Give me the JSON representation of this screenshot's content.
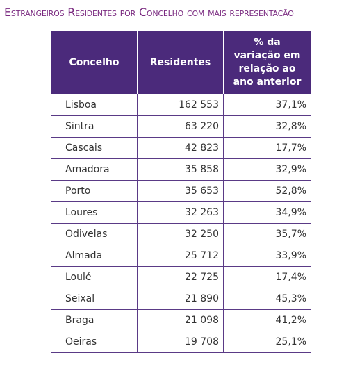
{
  "title": "Estrangeiros Residentes por Concelho com mais representação",
  "table": {
    "header": [
      "Concelho",
      "Residentes",
      "% da variação em relação ao ano anterior"
    ],
    "rows": [
      [
        "Lisboa",
        "162 553",
        "37,1%"
      ],
      [
        "Sintra",
        "63 220",
        "32,8%"
      ],
      [
        "Cascais",
        "42 823",
        "17,7%"
      ],
      [
        "Amadora",
        "35 858",
        "32,9%"
      ],
      [
        "Porto",
        "35 653",
        "52,8%"
      ],
      [
        "Loures",
        "32 263",
        "34,9%"
      ],
      [
        "Odivelas",
        "32 250",
        "35,7%"
      ],
      [
        "Almada",
        "25 712",
        "33,9%"
      ],
      [
        "Loulé",
        "22 725",
        "17,4%"
      ],
      [
        "Seixal",
        "21 890",
        "45,3%"
      ],
      [
        "Braga",
        "21 098",
        "41,2%"
      ],
      [
        "Oeiras",
        "19 708",
        "25,1%"
      ]
    ]
  }
}
